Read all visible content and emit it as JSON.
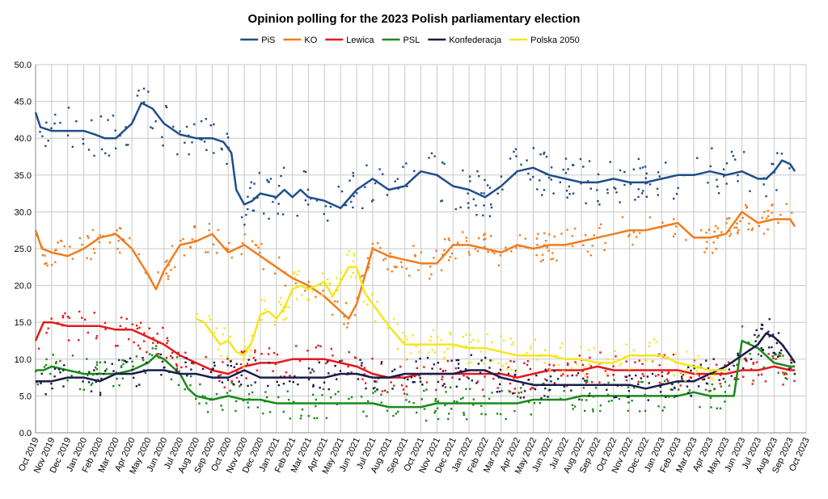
{
  "chart_data": {
    "type": "line",
    "title": "Opinion polling for the 2023 Polish parliamentary election",
    "xlabel": "",
    "ylabel": "",
    "ylim": [
      0,
      50
    ],
    "yticks": [
      "0.0",
      "5.0",
      "10.0",
      "15.0",
      "20.0",
      "25.0",
      "30.0",
      "35.0",
      "40.0",
      "45.0",
      "50.0"
    ],
    "xticks": [
      "Oct 2019",
      "Nov 2019",
      "Dec 2019",
      "Jan 2020",
      "Feb 2020",
      "Mar 2020",
      "Apr 2020",
      "May 2020",
      "Jun 2020",
      "Jul 2020",
      "Aug 2020",
      "Sep 2020",
      "Oct 2020",
      "Nov 2020",
      "Dec 2020",
      "Jan 2021",
      "Feb 2021",
      "Mar 2021",
      "Apr 2021",
      "May 2021",
      "Jun 2021",
      "Jul 2021",
      "Aug 2021",
      "Sep 2021",
      "Oct 2021",
      "Nov 2021",
      "Dec 2021",
      "Jan 2022",
      "Feb 2022",
      "Mar 2022",
      "Apr 2022",
      "May 2022",
      "Jun 2022",
      "Jul 2022",
      "Aug 2022",
      "Sep 2022",
      "Oct 2022",
      "Nov 2022",
      "Dec 2022",
      "Jan 2023",
      "Feb 2023",
      "Mar 2023",
      "Apr 2023",
      "May 2023",
      "Jun 2023",
      "Jul 2023",
      "Aug 2023",
      "Sep 2023",
      "Oct 2023"
    ],
    "grid": true,
    "legend_placement": "top-center",
    "series": [
      {
        "name": "PiS",
        "color": "#1f4e8c",
        "x": [
          0,
          0.3,
          1,
          2,
          3,
          3.7,
          4.3,
          5,
          6,
          6.6,
          7.3,
          8,
          9,
          10,
          11,
          11.7,
          12.2,
          12.5,
          13,
          13.5,
          14,
          15,
          15.5,
          16,
          16.5,
          17,
          18,
          19,
          20,
          21,
          22,
          23,
          24,
          25,
          26,
          27,
          28,
          29,
          30,
          31,
          32,
          33,
          34,
          35,
          36,
          37,
          38,
          39,
          40,
          41,
          42,
          43,
          44,
          45,
          45.5,
          46,
          46.5,
          47,
          47.3
        ],
        "values": [
          43.5,
          41.5,
          41,
          41,
          41,
          40.5,
          40,
          40,
          42,
          44.8,
          44,
          42,
          40.5,
          40,
          40,
          39.5,
          38,
          33,
          31,
          31.5,
          32.5,
          32,
          33,
          32,
          33,
          32,
          31.5,
          30.5,
          33,
          34.5,
          33,
          33.5,
          35.5,
          35,
          33.5,
          33,
          32,
          33.5,
          35.5,
          36,
          35,
          34.5,
          34,
          34,
          34.5,
          34,
          34,
          34.5,
          35,
          35,
          35.5,
          35,
          35.5,
          34.5,
          34.5,
          35.5,
          37,
          36.5,
          35.5
        ]
      },
      {
        "name": "KO",
        "color": "#f07d1e",
        "x": [
          0,
          0.4,
          1,
          2,
          3,
          4,
          5,
          6,
          7,
          7.5,
          8,
          9,
          10,
          11,
          12,
          13,
          14,
          15,
          16,
          17,
          18,
          19,
          19.5,
          20,
          21,
          22,
          23,
          24,
          25,
          26,
          27,
          28,
          29,
          30,
          31,
          32,
          33,
          34,
          35,
          36,
          37,
          38,
          39,
          40,
          41,
          42,
          43,
          44,
          45,
          46,
          47,
          47.3
        ],
        "values": [
          27.5,
          25,
          24.5,
          24,
          25,
          26.5,
          27,
          25,
          21.5,
          19.5,
          22,
          25.5,
          26,
          27,
          24.5,
          25.5,
          24,
          22.5,
          21,
          20,
          18.5,
          16.5,
          15.5,
          17.5,
          25,
          24,
          23.5,
          23,
          23,
          25.5,
          25.5,
          25,
          24.5,
          25.5,
          25,
          25.5,
          25.5,
          26,
          26.5,
          27,
          27.5,
          27.5,
          28,
          28.5,
          26.5,
          26.5,
          27,
          30,
          28.5,
          29,
          29,
          28
        ]
      },
      {
        "name": "Lewica",
        "color": "#e31a1c",
        "x": [
          0,
          0.5,
          1,
          2,
          3,
          4,
          5,
          6,
          7,
          8,
          9,
          10,
          11,
          12,
          13,
          14,
          15,
          16,
          17,
          18,
          19,
          20,
          21,
          22,
          23,
          24,
          25,
          26,
          27,
          28,
          29,
          30,
          31,
          32,
          33,
          34,
          35,
          36,
          37,
          38,
          39,
          40,
          41,
          42,
          43,
          44,
          45,
          46,
          47,
          47.3
        ],
        "values": [
          12.5,
          15,
          15,
          14.5,
          14.5,
          14.5,
          14,
          14,
          13,
          12,
          10.5,
          9.5,
          8.5,
          8,
          9,
          9.5,
          9.5,
          10,
          10,
          10,
          9.5,
          9,
          8,
          7.5,
          7.5,
          8,
          8,
          8,
          8,
          8,
          8,
          7.5,
          8,
          8.5,
          8.5,
          8.5,
          9,
          8.5,
          8.5,
          8.5,
          8.5,
          8.5,
          8,
          8,
          8,
          8.5,
          8.5,
          9,
          8.5,
          8.5
        ]
      },
      {
        "name": "PSL",
        "color": "#1a8a1a",
        "x": [
          0,
          0.5,
          1,
          2,
          3,
          4,
          5,
          6,
          7,
          7.5,
          8,
          9,
          9.5,
          10,
          11,
          12,
          13,
          14,
          15,
          16,
          17,
          18,
          19,
          20,
          21,
          22,
          23,
          24,
          25,
          26,
          27,
          28,
          29,
          30,
          31,
          32,
          33,
          34,
          35,
          36,
          37,
          38,
          39,
          40,
          41,
          42,
          43,
          43.5,
          44,
          45,
          46,
          47,
          47.3
        ],
        "values": [
          8.5,
          8.5,
          9,
          8.5,
          8,
          8,
          8,
          8.5,
          9.5,
          10.5,
          10,
          8,
          6,
          5,
          4.5,
          5,
          4.5,
          4.5,
          4,
          4,
          4,
          4,
          4,
          4,
          4,
          3.5,
          3.5,
          3.5,
          4,
          4,
          4,
          4,
          4,
          4,
          4.5,
          4.5,
          4.5,
          5,
          5,
          5,
          5,
          5,
          5,
          5,
          5.5,
          5,
          5,
          5,
          12.5,
          11.5,
          9.5,
          9,
          9
        ]
      },
      {
        "name": "Konfederacja",
        "color": "#1b1b4d",
        "x": [
          0,
          1,
          2,
          3,
          4,
          5,
          6,
          7,
          8,
          9,
          10,
          11,
          12,
          13,
          14,
          15,
          16,
          17,
          18,
          19,
          20,
          21,
          22,
          23,
          24,
          25,
          26,
          27,
          28,
          29,
          30,
          31,
          32,
          33,
          34,
          35,
          36,
          37,
          38,
          39,
          40,
          41,
          42,
          43,
          44,
          45,
          45.5,
          46,
          46.5,
          47,
          47.3
        ],
        "values": [
          7,
          7,
          7.5,
          7.5,
          7,
          8,
          8,
          8.5,
          8.5,
          8,
          8,
          7.5,
          7.5,
          8.5,
          7.5,
          7.5,
          7.5,
          7.5,
          7.5,
          8,
          8,
          7.5,
          7.5,
          8,
          8,
          8,
          8,
          8.5,
          8.5,
          7.5,
          7,
          6.5,
          6.5,
          6.5,
          6.5,
          6.5,
          6.5,
          6.5,
          6,
          6.5,
          7,
          7,
          8,
          9,
          10.5,
          12,
          13.5,
          13,
          12,
          10.5,
          9.5
        ]
      },
      {
        "name": "Polska 2050",
        "color": "#f5e61b",
        "x": [
          10,
          10.5,
          11,
          11.5,
          12,
          12.5,
          13,
          13.5,
          14,
          14.5,
          15,
          15.5,
          16,
          16.5,
          17,
          17.5,
          18,
          18.5,
          19,
          19.5,
          20,
          20.5,
          21,
          22,
          23,
          24,
          25,
          26,
          27,
          28,
          29,
          30,
          31,
          32,
          33,
          34,
          35,
          36,
          37,
          38,
          39,
          40,
          41,
          42,
          43
        ],
        "values": [
          15.5,
          15,
          13.5,
          12,
          12.5,
          11,
          10.5,
          12.5,
          16,
          16.5,
          15.5,
          17,
          19.5,
          20,
          19.5,
          20,
          20.5,
          18.5,
          20.5,
          22.5,
          22.5,
          19,
          17.5,
          14.5,
          12,
          12,
          12,
          12,
          11.5,
          11.5,
          11,
          10.5,
          10.5,
          10.5,
          10,
          10,
          9.5,
          9.5,
          10.5,
          10.5,
          10.5,
          9.5,
          9,
          8.5,
          8.5
        ]
      }
    ]
  }
}
